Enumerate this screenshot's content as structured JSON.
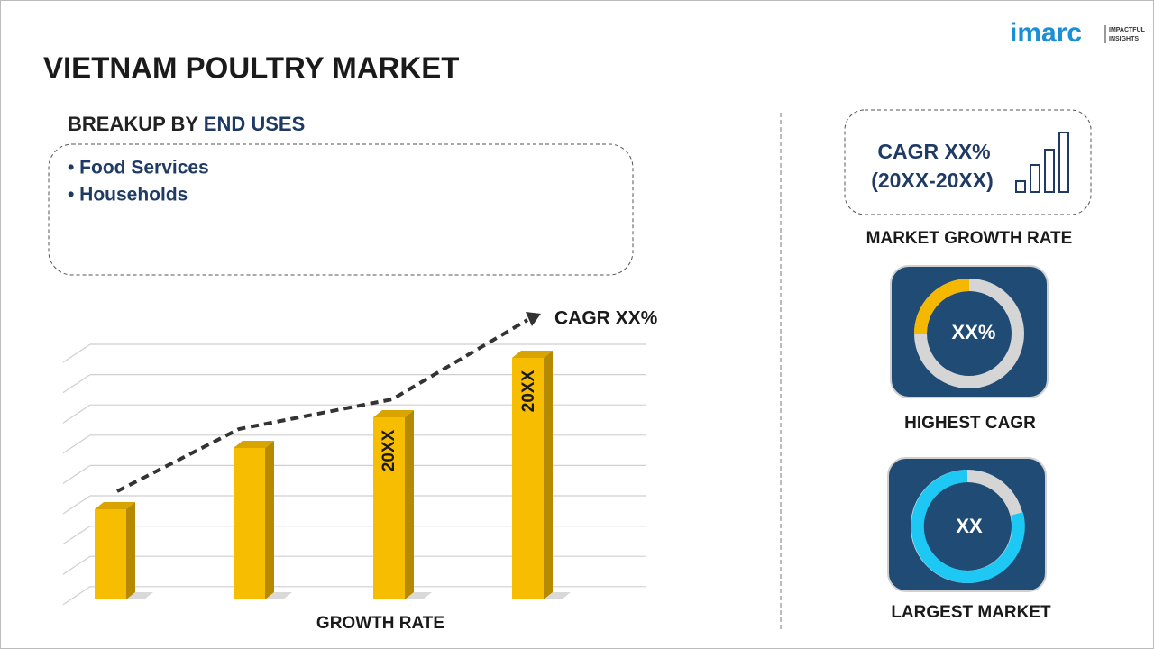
{
  "logo": {
    "name": "imarc",
    "tagline_1": "IMPACTFUL",
    "tagline_2": "INSIGHTS"
  },
  "title": "VIETNAM POULTRY MARKET",
  "breakup": {
    "label": "BREAKUP BY",
    "highlight": "END USES",
    "items": [
      "• Food Services",
      "• Households"
    ]
  },
  "growth_chart": {
    "trend_label": "CAGR XX%",
    "bar_labels": [
      "20XX",
      "20XX"
    ],
    "axis_label": "GROWTH RATE"
  },
  "panels": {
    "cagr_line_1": "CAGR XX%",
    "cagr_line_2": "(20XX-20XX)",
    "cagr_caption": "MARKET GROWTH RATE",
    "highest_value": "XX%",
    "highest_caption": "HIGHEST CAGR",
    "largest_value": "XX",
    "largest_caption": "LARGEST MARKET"
  }
}
